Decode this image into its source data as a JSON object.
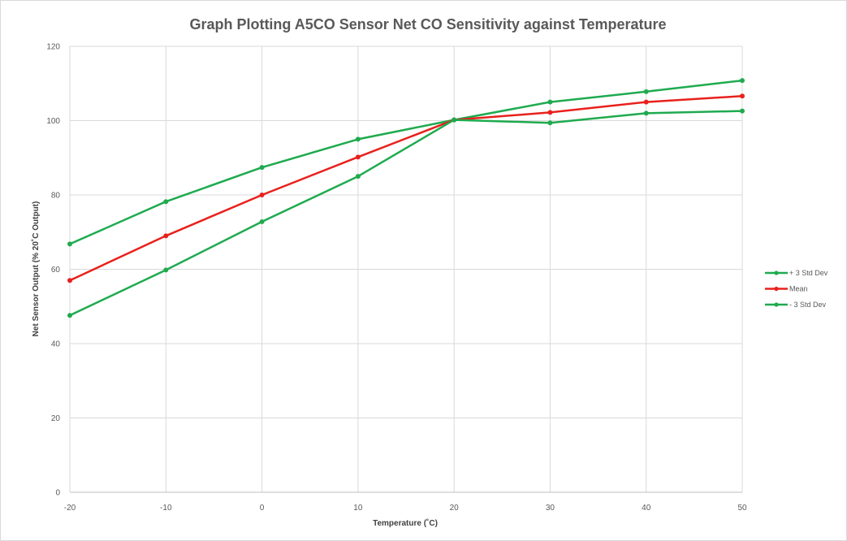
{
  "chart_data": {
    "type": "line",
    "title": "Graph Plotting A5CO Sensor Net CO Sensitivity against Temperature",
    "xlabel": "Temperature (˚C)",
    "ylabel": "Net Sensor Output (% 20˚C Output)",
    "x": [
      -20,
      -10,
      0,
      10,
      20,
      30,
      40,
      50
    ],
    "xlim": [
      -20,
      50
    ],
    "ylim": [
      0,
      120
    ],
    "xticks": [
      -20,
      -10,
      0,
      10,
      20,
      30,
      40,
      50
    ],
    "yticks": [
      0,
      20,
      40,
      60,
      80,
      100,
      120
    ],
    "grid": true,
    "legend_position": "right",
    "series": [
      {
        "name": "+ 3 Std Dev",
        "color": "#1faa4f",
        "values": [
          66.8,
          78.2,
          87.4,
          95,
          100.2,
          105,
          107.8,
          110.8
        ]
      },
      {
        "name": "Mean",
        "color": "#e8211c",
        "values": [
          57,
          69,
          80,
          90.2,
          100.2,
          102.2,
          105,
          106.6
        ]
      },
      {
        "name": "- 3 Std Dev",
        "color": "#1faa4f",
        "values": [
          47.6,
          59.8,
          72.8,
          85,
          100.2,
          99.4,
          102,
          102.6
        ]
      }
    ]
  }
}
